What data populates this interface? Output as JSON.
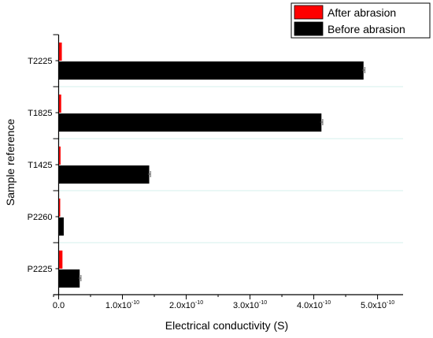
{
  "chart_data": {
    "type": "bar",
    "orientation": "horizontal",
    "xlabel": "Electrical conductivity (S)",
    "ylabel": "Sample reference",
    "xlim": [
      -8e-12,
      5.4e-10
    ],
    "x_ticks": [
      {
        "value": 0,
        "mantissa": "0.0",
        "exp": ""
      },
      {
        "value": 1e-10,
        "mantissa": "1.0x10",
        "exp": "-10"
      },
      {
        "value": 2e-10,
        "mantissa": "2.0x10",
        "exp": "-10"
      },
      {
        "value": 3e-10,
        "mantissa": "3.0x10",
        "exp": "-10"
      },
      {
        "value": 4e-10,
        "mantissa": "4.0x10",
        "exp": "-10"
      },
      {
        "value": 5e-10,
        "mantissa": "5.0x10",
        "exp": "-10"
      }
    ],
    "categories": [
      "T2225",
      "T1825",
      "T1425",
      "P2260",
      "P2225"
    ],
    "series": [
      {
        "name": "After abrasion",
        "color": "#ff0000",
        "values": [
          5e-12,
          4e-12,
          3e-12,
          2e-12,
          6e-12
        ],
        "errors": [
          0,
          0,
          0,
          0,
          0
        ]
      },
      {
        "name": "Before abrasion",
        "color": "#000000",
        "values": [
          4.78e-10,
          4.12e-10,
          1.42e-10,
          8e-12,
          3.3e-11
        ],
        "errors": [
          2e-12,
          2e-12,
          2e-12,
          0,
          2e-12
        ]
      }
    ],
    "legend_position": "top-right",
    "grid": "horizontal separators"
  }
}
